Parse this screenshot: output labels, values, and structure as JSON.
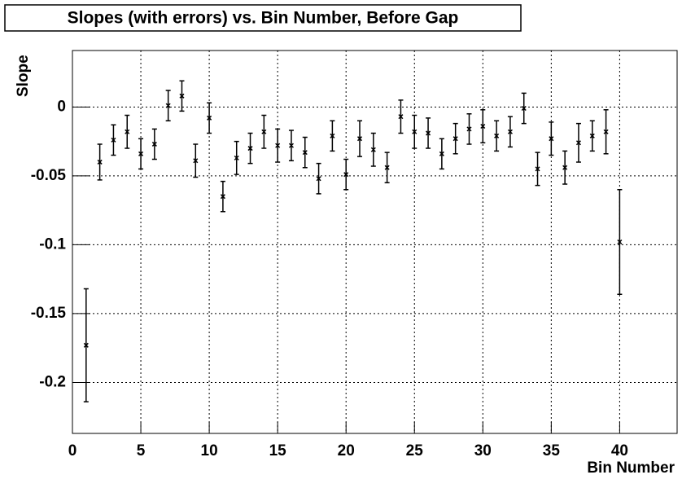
{
  "chart_data": {
    "type": "errorbar",
    "title": "Slopes (with errors) vs. Bin Number, Before Gap",
    "x_label": "Bin Number",
    "y_label": "Slope",
    "x": [
      1,
      2,
      3,
      4,
      5,
      6,
      7,
      8,
      9,
      10,
      11,
      12,
      13,
      14,
      15,
      16,
      17,
      18,
      19,
      20,
      21,
      22,
      23,
      24,
      25,
      26,
      27,
      28,
      29,
      30,
      31,
      32,
      33,
      34,
      35,
      36,
      37,
      38,
      39,
      40
    ],
    "values": [
      -0.173,
      -0.04,
      -0.024,
      -0.018,
      -0.034,
      -0.027,
      0.001,
      0.008,
      -0.039,
      -0.008,
      -0.065,
      -0.037,
      -0.03,
      -0.018,
      -0.028,
      -0.028,
      -0.033,
      -0.052,
      -0.021,
      -0.049,
      -0.023,
      -0.031,
      -0.044,
      -0.007,
      -0.018,
      -0.019,
      -0.034,
      -0.023,
      -0.016,
      -0.014,
      -0.021,
      -0.018,
      -0.001,
      -0.045,
      -0.023,
      -0.044,
      -0.026,
      -0.021,
      -0.018,
      -0.098
    ],
    "errors": [
      0.041,
      0.013,
      0.011,
      0.012,
      0.011,
      0.011,
      0.011,
      0.011,
      0.012,
      0.011,
      0.011,
      0.012,
      0.011,
      0.012,
      0.012,
      0.011,
      0.011,
      0.011,
      0.011,
      0.011,
      0.013,
      0.012,
      0.011,
      0.012,
      0.012,
      0.011,
      0.011,
      0.011,
      0.011,
      0.012,
      0.011,
      0.011,
      0.011,
      0.012,
      0.012,
      0.012,
      0.014,
      0.011,
      0.016,
      0.038
    ],
    "color": "#000000",
    "xlim": [
      0,
      44.2
    ],
    "ylim": [
      -0.237,
      0.041
    ],
    "xticks": [
      0,
      5,
      10,
      15,
      20,
      25,
      30,
      35,
      40
    ],
    "yticks": [
      0,
      -0.05,
      -0.1,
      -0.15,
      -0.2
    ],
    "grid": true
  }
}
